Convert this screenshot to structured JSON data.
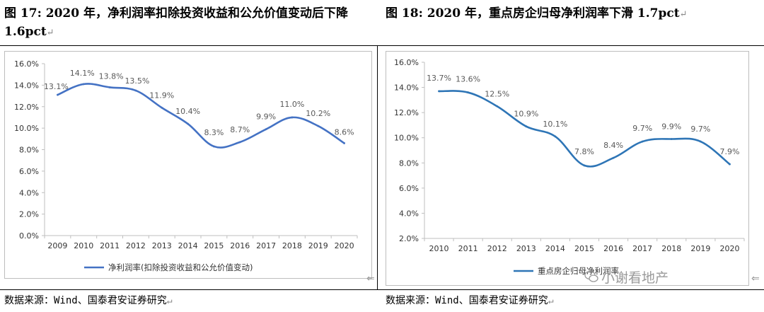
{
  "titles": {
    "left": "图 17: 2020 年，净利润率扣除投资收益和公允价值变动后下降 1.6pct",
    "right": "图 18: 2020 年，重点房企归母净利润率下滑 1.7pct"
  },
  "sources": {
    "left": "数据来源：Wind、国泰君安证券研究",
    "right": "数据来源：Wind、国泰君安证券研究"
  },
  "watermark": "小谢看地产",
  "chart_data": [
    {
      "type": "line",
      "x": [
        "2009",
        "2010",
        "2011",
        "2012",
        "2013",
        "2014",
        "2015",
        "2016",
        "2017",
        "2018",
        "2019",
        "2020"
      ],
      "series": [
        {
          "name": "净利润率(扣除投资收益和公允价值变动)",
          "values": [
            13.1,
            14.1,
            13.8,
            13.5,
            11.9,
            10.4,
            8.3,
            8.7,
            9.9,
            11.0,
            10.2,
            8.6
          ],
          "labels": [
            "13.1%",
            "14.1%",
            "13.8%",
            "13.5%",
            "11.9%",
            "10.4%",
            "8.3%",
            "8.7%",
            "9.9%",
            "11.0%",
            "10.2%",
            "8.6%"
          ],
          "color": "#4472C4"
        }
      ],
      "yticks": [
        "0.0%",
        "2.0%",
        "4.0%",
        "6.0%",
        "8.0%",
        "10.0%",
        "12.0%",
        "14.0%",
        "16.0%"
      ],
      "ylim": [
        0,
        16
      ],
      "grid": false,
      "legend": "bottom"
    },
    {
      "type": "line",
      "x": [
        "2010",
        "2011",
        "2012",
        "2013",
        "2014",
        "2015",
        "2016",
        "2017",
        "2018",
        "2019",
        "2020"
      ],
      "series": [
        {
          "name": "重点房企归母净利润率",
          "values": [
            13.7,
            13.6,
            12.5,
            10.9,
            10.1,
            7.8,
            8.4,
            9.7,
            9.9,
            9.7,
            7.9
          ],
          "labels": [
            "13.7%",
            "13.6%",
            "12.5%",
            "10.9%",
            "10.1%",
            "7.8%",
            "8.4%",
            "9.7%",
            "9.9%",
            "9.7%",
            "7.9%"
          ],
          "color": "#2E75B6"
        }
      ],
      "yticks": [
        "2.0%",
        "4.0%",
        "6.0%",
        "8.0%",
        "10.0%",
        "12.0%",
        "14.0%",
        "16.0%"
      ],
      "ylim": [
        2,
        16
      ],
      "grid": false,
      "legend": "bottom"
    }
  ]
}
